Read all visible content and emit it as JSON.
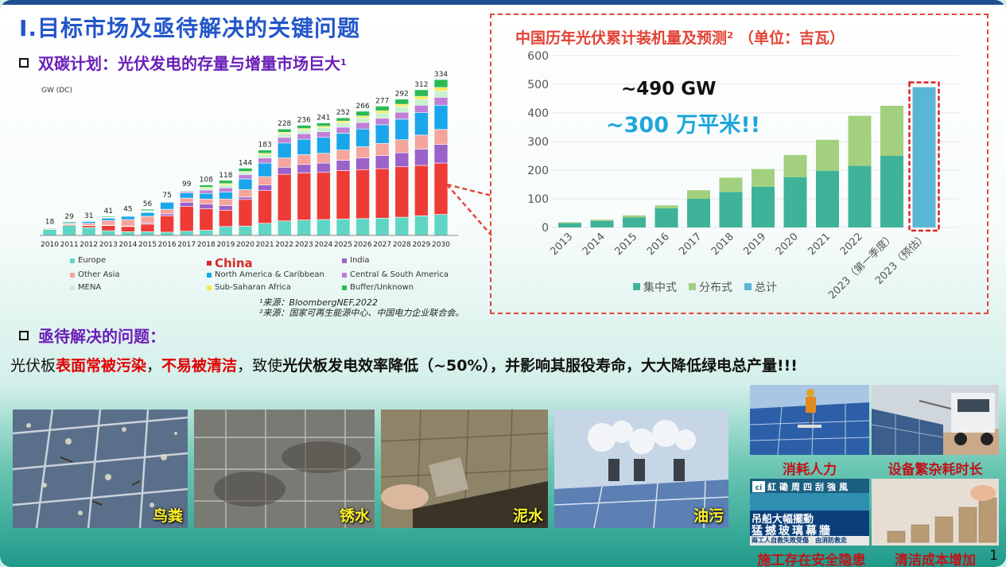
{
  "title": "I.目标市场及亟待解决的关键问题",
  "section1": {
    "label": "双碳计划：光伏发电的存量与增量市场巨大",
    "sup": "1"
  },
  "left_chart": {
    "unit_label": "GW (DC)",
    "legend": [
      {
        "name": "Europe",
        "color": "#5fd6c4"
      },
      {
        "name": "China",
        "color": "#ef3b36"
      },
      {
        "name": "India",
        "color": "#9b62c9"
      },
      {
        "name": "Other Asia",
        "color": "#f6a59d"
      },
      {
        "name": "North America & Caribbean",
        "color": "#1aa6ea"
      },
      {
        "name": "Central & South America",
        "color": "#c07fd6"
      },
      {
        "name": "MENA",
        "color": "#c9f0cf"
      },
      {
        "name": "Sub-Saharan Africa",
        "color": "#f7e94a"
      },
      {
        "name": "Buffer/Unknown",
        "color": "#2bba55"
      }
    ]
  },
  "sources": [
    "¹来源：BloombergNEF,2022",
    "²来源：国家可再生能源中心、中国电力企业联合会。"
  ],
  "right_chart_title": "中国历年光伏累计装机量及预测² （单位：吉瓦）",
  "callout": {
    "gw": "~490 GW",
    "area": "~300 万平米!!"
  },
  "chart_data": [
    {
      "type": "bar",
      "stacked": true,
      "ylabel": "GW (DC)",
      "categories": [
        "2010",
        "2011",
        "2012",
        "2013",
        "2014",
        "2015",
        "2016",
        "2017",
        "2018",
        "2019",
        "2020",
        "2021",
        "2022",
        "2023",
        "2024",
        "2025",
        "2026",
        "2027",
        "2028",
        "2029",
        "2030"
      ],
      "totals": [
        18,
        29,
        31,
        41,
        45,
        56,
        75,
        99,
        108,
        118,
        144,
        183,
        228,
        236,
        241,
        252,
        266,
        277,
        292,
        312,
        334
      ],
      "series": [
        {
          "name": "Europe",
          "values": [
            13,
            21,
            17,
            10,
            8,
            8,
            7,
            9,
            11,
            19,
            20,
            26,
            31,
            33,
            34,
            35,
            36,
            37,
            39,
            42,
            45
          ]
        },
        {
          "name": "China",
          "values": [
            1,
            2,
            4,
            11,
            11,
            16,
            35,
            53,
            46,
            35,
            57,
            70,
            100,
            101,
            101,
            104,
            105,
            106,
            108,
            108,
            110
          ]
        },
        {
          "name": "India",
          "values": [
            0,
            0,
            1,
            1,
            1,
            2,
            4,
            9,
            10,
            10,
            5,
            12,
            15,
            18,
            20,
            22,
            25,
            28,
            30,
            35,
            40
          ]
        },
        {
          "name": "Other Asia",
          "values": [
            2,
            2,
            4,
            10,
            14,
            15,
            10,
            9,
            11,
            14,
            16,
            18,
            20,
            21,
            21,
            22,
            24,
            26,
            28,
            30,
            32
          ]
        },
        {
          "name": "North America & Caribbean",
          "values": [
            1,
            2,
            4,
            5,
            7,
            8,
            15,
            11,
            12,
            15,
            23,
            29,
            32,
            33,
            34,
            36,
            38,
            40,
            44,
            48,
            52
          ]
        },
        {
          "name": "Central & South America",
          "values": [
            0,
            0,
            0,
            0,
            1,
            1,
            1,
            3,
            7,
            9,
            9,
            11,
            12,
            12,
            12,
            13,
            14,
            14,
            15,
            16,
            17
          ]
        },
        {
          "name": "MENA",
          "values": [
            0,
            0,
            0,
            1,
            1,
            2,
            2,
            3,
            4,
            6,
            5,
            7,
            8,
            8,
            9,
            9,
            10,
            11,
            12,
            13,
            14
          ]
        },
        {
          "name": "Sub-Saharan Africa",
          "values": [
            0,
            0,
            0,
            1,
            1,
            1,
            1,
            1,
            2,
            3,
            2,
            3,
            3,
            3,
            3,
            4,
            4,
            5,
            5,
            6,
            7
          ]
        },
        {
          "name": "Buffer/Unknown",
          "values": [
            1,
            2,
            1,
            2,
            1,
            3,
            0,
            1,
            5,
            7,
            7,
            7,
            7,
            7,
            7,
            7,
            10,
            10,
            11,
            14,
            17
          ]
        }
      ]
    },
    {
      "type": "bar",
      "stacked": true,
      "ylim": [
        0,
        600
      ],
      "yticks": [
        0,
        100,
        200,
        300,
        400,
        500,
        600
      ],
      "categories": [
        "2013",
        "2014",
        "2015",
        "2016",
        "2017",
        "2018",
        "2019",
        "2020",
        "2021",
        "2022",
        "2023（第一季度）",
        "2023（预估）"
      ],
      "series": [
        {
          "name": "集中式",
          "color": "#3fb39a",
          "values": [
            15,
            23,
            35,
            67,
            100,
            124,
            142,
            175,
            198,
            215,
            250,
            0
          ]
        },
        {
          "name": "分布式",
          "color": "#a3d07f",
          "values": [
            3,
            4,
            7,
            10,
            30,
            50,
            62,
            78,
            108,
            175,
            175,
            0
          ]
        },
        {
          "name": "总计",
          "color": "#5bb6d3",
          "values": [
            0,
            0,
            0,
            0,
            0,
            0,
            0,
            0,
            0,
            0,
            0,
            490
          ]
        }
      ]
    }
  ],
  "section2": {
    "label": "亟待解决的问题："
  },
  "paragraph": {
    "p1": "光伏板",
    "p2": "表面常被污染",
    "p3": "，",
    "p4": "不易被清洁",
    "p5": "，致使",
    "p6": "光伏板发电效率降低（~50%），并影响其服役寿命，大大降低绿电总产量!!!"
  },
  "photos": [
    {
      "caption": "鸟粪"
    },
    {
      "caption": "锈水"
    },
    {
      "caption": "泥水"
    },
    {
      "caption": "油污"
    }
  ],
  "right_photos": [
    {
      "caption": "消耗人力"
    },
    {
      "caption": "设备繁杂耗时长"
    },
    {
      "caption": "施工存在安全隐患"
    },
    {
      "caption": "清洁成本增加"
    }
  ],
  "news": {
    "headline1": "吊船大幅擺動",
    "headline2": "猛撼玻璃幕牆",
    "ticker": "兩工人自救失敗受傷　由消防救走",
    "sign": "紅磡周四刮強風"
  },
  "page_number": "1"
}
